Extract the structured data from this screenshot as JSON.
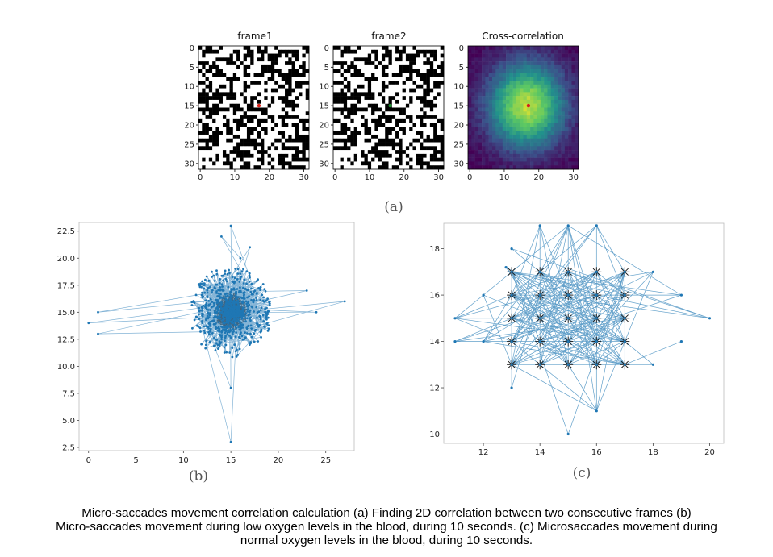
{
  "colors": {
    "series": "#1f77b4",
    "marker_frame1": "#e0241c",
    "marker_frame2": "#1e8a2e",
    "marker_xcorr": "#d21e1e"
  },
  "panel_a": {
    "label": "(a)",
    "subplots": [
      {
        "title": "frame1",
        "type": "heatmap",
        "colormap": "binary",
        "size": 32,
        "marker": {
          "x": 17,
          "y": 15
        }
      },
      {
        "title": "frame2",
        "type": "heatmap",
        "colormap": "binary",
        "size": 32,
        "marker": {
          "x": 16,
          "y": 15
        }
      },
      {
        "title": "Cross-correlation",
        "type": "heatmap",
        "colormap": "viridis",
        "size": 32,
        "marker": {
          "x": 17,
          "y": 15
        }
      }
    ],
    "x_ticks": [
      "0",
      "10",
      "20",
      "30"
    ],
    "y_ticks": [
      "0",
      "5",
      "10",
      "15",
      "20",
      "25",
      "30"
    ]
  },
  "chart_data": [
    {
      "type": "scatter",
      "panel": "(b)",
      "title": "",
      "xlabel": "",
      "ylabel": "",
      "xlim": [
        -1,
        28
      ],
      "ylim": [
        2.2,
        23.3
      ],
      "x_ticks": [
        "0",
        "5",
        "10",
        "15",
        "20",
        "25"
      ],
      "y_ticks": [
        "2.5",
        "5.0",
        "7.5",
        "10.0",
        "12.5",
        "15.0",
        "17.5",
        "20.0",
        "22.5"
      ],
      "connected": true,
      "grid": false,
      "notes_points": [
        [
          15,
          3
        ],
        [
          15,
          8
        ],
        [
          15,
          23
        ],
        [
          14,
          22
        ],
        [
          0,
          14
        ],
        [
          1,
          13
        ],
        [
          1,
          15
        ],
        [
          27,
          16
        ],
        [
          24,
          15
        ],
        [
          23,
          17
        ],
        [
          17,
          21
        ],
        [
          16,
          20
        ]
      ],
      "center": [
        15,
        15
      ]
    },
    {
      "type": "scatter",
      "panel": "(c)",
      "title": "",
      "xlabel": "",
      "ylabel": "",
      "xlim": [
        10.6,
        20.5
      ],
      "ylim": [
        9.6,
        19.1
      ],
      "x_ticks": [
        "12",
        "14",
        "16",
        "18",
        "20"
      ],
      "y_ticks": [
        "10",
        "12",
        "14",
        "16",
        "18"
      ],
      "connected": true,
      "grid": false,
      "grid_points_x": [
        13,
        14,
        15,
        16,
        17
      ],
      "grid_points_y": [
        13,
        14,
        15,
        16,
        17
      ],
      "outer_points": [
        [
          11,
          15
        ],
        [
          11,
          14
        ],
        [
          12,
          16
        ],
        [
          12,
          14
        ],
        [
          13,
          18
        ],
        [
          13,
          12
        ],
        [
          14,
          19
        ],
        [
          15,
          19
        ],
        [
          16,
          19
        ],
        [
          15,
          10
        ],
        [
          16,
          11
        ],
        [
          18,
          17
        ],
        [
          19,
          16
        ],
        [
          19,
          14
        ],
        [
          20,
          15
        ],
        [
          18,
          13
        ],
        [
          12.8,
          17.2
        ]
      ],
      "center": [
        15,
        15
      ]
    }
  ],
  "panel_b": {
    "label": "(b)"
  },
  "panel_c": {
    "label": "(c)"
  },
  "caption": {
    "line1": "Micro-saccades movement correlation calculation (a) Finding 2D correlation between two consecutive frames (b)",
    "line2": "Micro-saccades movement during low oxygen levels in the blood, during 10 seconds. (c) Microsaccades movement during",
    "line3": "normal oxygen levels in the blood, during 10 seconds."
  }
}
